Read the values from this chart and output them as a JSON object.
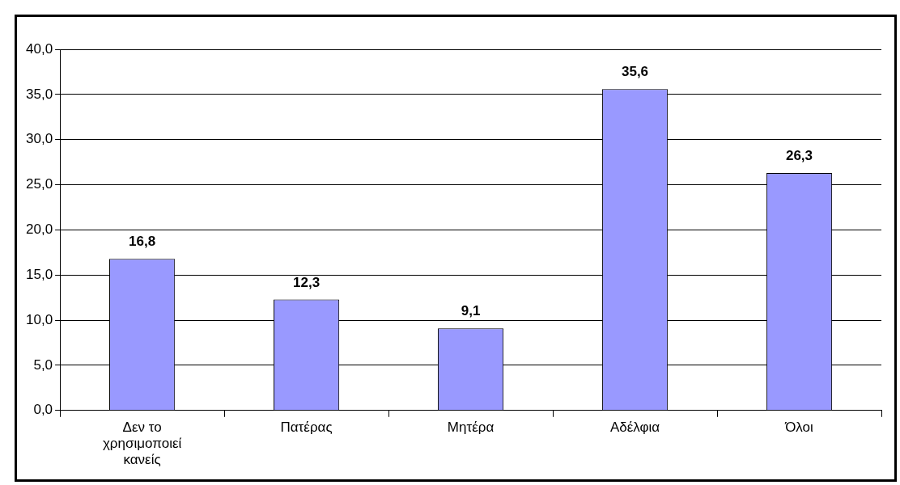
{
  "chart_data": {
    "type": "bar",
    "categories": [
      "Δεν το χρησιμοποιεί κανείς",
      "Πατέρας",
      "Μητέρα",
      "Αδέλφια",
      "Όλοι"
    ],
    "values": [
      16.8,
      12.3,
      9.1,
      35.6,
      26.3
    ],
    "value_labels": [
      "16,8",
      "12,3",
      "9,1",
      "35,6",
      "26,3"
    ],
    "color": "#9999ff",
    "ylim": [
      0,
      40
    ],
    "yticks": [
      {
        "value": 0,
        "label": "0,0"
      },
      {
        "value": 5,
        "label": "5,0"
      },
      {
        "value": 10,
        "label": "10,0"
      },
      {
        "value": 15,
        "label": "15,0"
      },
      {
        "value": 20,
        "label": "20,0"
      },
      {
        "value": 25,
        "label": "25,0"
      },
      {
        "value": 30,
        "label": "30,0"
      },
      {
        "value": 35,
        "label": "35,0"
      },
      {
        "value": 40,
        "label": "40,0"
      }
    ],
    "grid": "y"
  }
}
